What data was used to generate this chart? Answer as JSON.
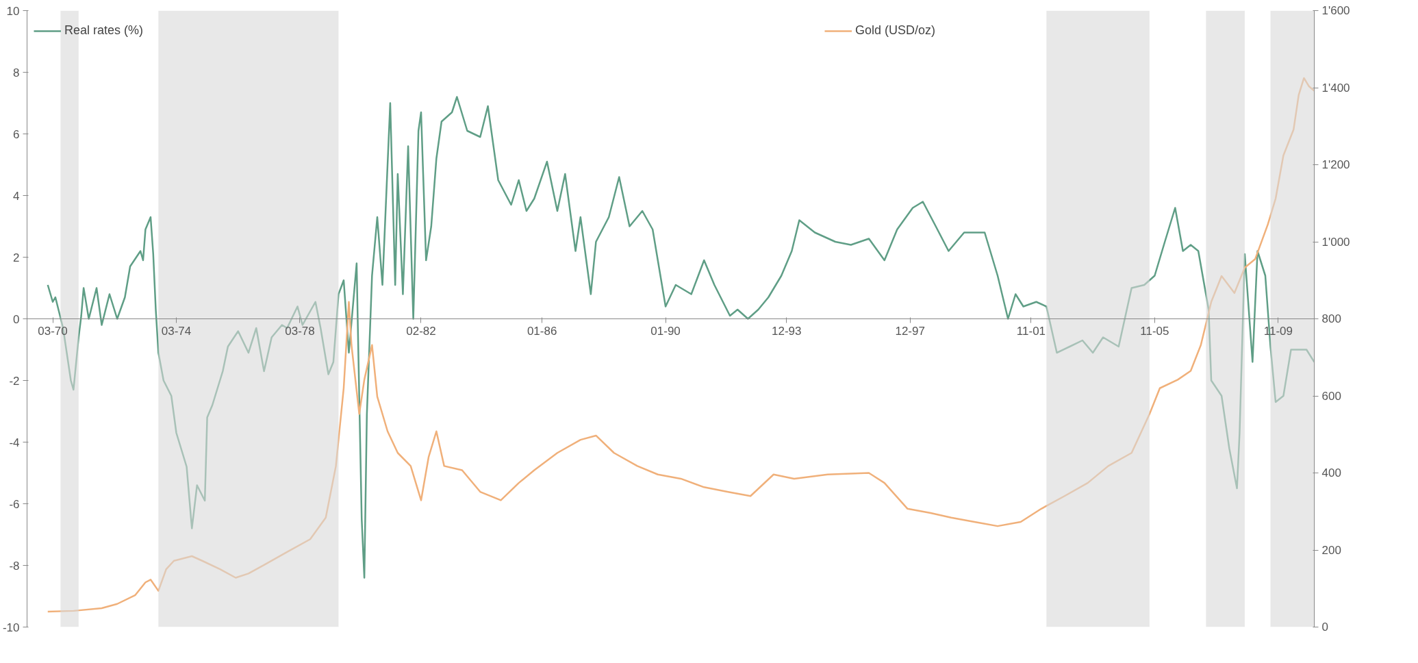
{
  "chart_data": {
    "type": "line",
    "xlim": [
      "1969-05",
      "2011-01"
    ],
    "xticks": [
      {
        "value": "1970-03",
        "label": "03-70"
      },
      {
        "value": "1974-03",
        "label": "03-74"
      },
      {
        "value": "1978-03",
        "label": "03-78"
      },
      {
        "value": "1982-02",
        "label": "02-82"
      },
      {
        "value": "1986-01",
        "label": "01-86"
      },
      {
        "value": "1990-01",
        "label": "01-90"
      },
      {
        "value": "1993-12",
        "label": "12-93"
      },
      {
        "value": "1997-12",
        "label": "12-97"
      },
      {
        "value": "2001-11",
        "label": "11-01"
      },
      {
        "value": "2005-11",
        "label": "11-05"
      },
      {
        "value": "2009-11",
        "label": "11-09"
      }
    ],
    "ylim": [
      -10,
      10
    ],
    "yticks": [
      -10,
      -8,
      -6,
      -4,
      -2,
      0,
      2,
      4,
      6,
      8,
      10
    ],
    "y2lim": [
      0,
      1600
    ],
    "y2ticks": [
      0,
      200,
      400,
      600,
      800,
      {
        "value": 1000,
        "label": "1'000"
      },
      {
        "value": 1200,
        "label": "1'200"
      },
      {
        "value": 1400,
        "label": "1'400"
      },
      {
        "value": 1600,
        "label": "1'600"
      }
    ],
    "grid": false,
    "legend": "top",
    "bands": [
      {
        "axis": "x",
        "from": "1970-06",
        "to": "1971-01",
        "color": "#d9d9d9"
      },
      {
        "axis": "x",
        "from": "1973-08",
        "to": "1979-06",
        "color": "#d9d9d9"
      },
      {
        "axis": "x",
        "from": "2002-05",
        "to": "2005-09",
        "color": "#d9d9d9"
      },
      {
        "axis": "x",
        "from": "2007-07",
        "to": "2008-10",
        "color": "#d9d9d9"
      },
      {
        "axis": "x",
        "from": "2009-08",
        "to": "2011-01",
        "color": "#d9d9d9"
      }
    ],
    "series": [
      {
        "name": "Real rates (%)",
        "color": "#5f9e86",
        "x": [
          "1970-01",
          "1970-03",
          "1970-04",
          "1970-07",
          "1970-10",
          "1970-11",
          "1971-01",
          "1971-02",
          "1971-03",
          "1971-05",
          "1971-08",
          "1971-10",
          "1972-01",
          "1972-04",
          "1972-07",
          "1972-09",
          "1973-01",
          "1973-02",
          "1973-03",
          "1973-05",
          "1973-06",
          "1973-07",
          "1973-08",
          "1973-10",
          "1974-01",
          "1974-03",
          "1974-07",
          "1974-09",
          "1974-11",
          "1975-02",
          "1975-03",
          "1975-05",
          "1975-09",
          "1975-11",
          "1976-03",
          "1976-07",
          "1976-10",
          "1977-01",
          "1977-04",
          "1977-08",
          "1977-10",
          "1978-02",
          "1978-04",
          "1978-09",
          "1978-11",
          "1979-02",
          "1979-04",
          "1979-06",
          "1979-08",
          "1979-10",
          "1980-01-01",
          "1980-01-20",
          "1980-03",
          "1980-04",
          "1980-05",
          "1980-07",
          "1980-09",
          "1980-11",
          "1981-02",
          "1981-04",
          "1981-05",
          "1981-07",
          "1981-09",
          "1981-11",
          "1982-01",
          "1982-02",
          "1982-04",
          "1982-06",
          "1982-08",
          "1982-10",
          "1983-02",
          "1983-04",
          "1983-08",
          "1984-01",
          "1984-04",
          "1984-08",
          "1985-01",
          "1985-04",
          "1985-07",
          "1985-10",
          "1986-03",
          "1986-07",
          "1986-10",
          "1987-02",
          "1987-04",
          "1987-08",
          "1987-10",
          "1988-03",
          "1988-07",
          "1988-11",
          "1989-04",
          "1989-08",
          "1990-01",
          "1990-05",
          "1990-11",
          "1991-04",
          "1991-08",
          "1992-02",
          "1992-05",
          "1992-09",
          "1993-01",
          "1993-05",
          "1993-10",
          "1994-02",
          "1994-05",
          "1994-11",
          "1995-07",
          "1996-01",
          "1996-08",
          "1997-02",
          "1997-07",
          "1998-01",
          "1998-05",
          "1998-10",
          "1999-03",
          "1999-09",
          "2000-05",
          "2000-10",
          "2001-02",
          "2001-05",
          "2001-08",
          "2002-01",
          "2002-05",
          "2002-09",
          "2003-02",
          "2003-07",
          "2003-11",
          "2004-03",
          "2004-09",
          "2005-02",
          "2005-07",
          "2005-11",
          "2006-03",
          "2006-07",
          "2006-10",
          "2007-01",
          "2007-04",
          "2007-08",
          "2007-09",
          "2008-01",
          "2008-04",
          "2008-07",
          "2008-08",
          "2008-10",
          "2009-01",
          "2009-03",
          "2009-06",
          "2009-08",
          "2009-10",
          "2010-01",
          "2010-04",
          "2010-10",
          "2011-01"
        ],
        "values": [
          1.1,
          0.55,
          0.7,
          -0.3,
          -2.0,
          -2.3,
          -0.6,
          0.1,
          1.0,
          0,
          1.0,
          -0.2,
          0.8,
          0,
          0.7,
          1.7,
          2.2,
          1.9,
          2.9,
          3.3,
          2.1,
          0.3,
          -1.1,
          -2.0,
          -2.5,
          -3.7,
          -4.8,
          -6.8,
          -5.4,
          -5.9,
          -3.2,
          -2.8,
          -1.7,
          -0.9,
          -0.4,
          -1.1,
          -0.3,
          -1.7,
          -0.6,
          -0.2,
          -0.3,
          0.4,
          -0.2,
          0.55,
          -0.3,
          -1.8,
          -1.4,
          0.8,
          1.25,
          -1.1,
          1.8,
          -0.9,
          -6.5,
          -8.4,
          -3.1,
          1.4,
          3.3,
          1.1,
          7.0,
          1.1,
          4.7,
          0.8,
          5.6,
          0,
          6.1,
          6.7,
          1.9,
          3.0,
          5.2,
          6.4,
          6.7,
          7.2,
          6.1,
          5.9,
          6.9,
          4.5,
          3.7,
          4.5,
          3.5,
          3.9,
          5.1,
          3.5,
          4.7,
          2.2,
          3.3,
          0.8,
          2.5,
          3.3,
          4.6,
          3.0,
          3.5,
          2.9,
          0.4,
          1.1,
          0.8,
          1.9,
          1.1,
          0.1,
          0.3,
          0,
          0.3,
          0.7,
          1.4,
          2.2,
          3.2,
          2.8,
          2.5,
          2.4,
          2.6,
          1.9,
          2.9,
          3.6,
          3.8,
          3.0,
          2.2,
          2.8,
          2.8,
          1.4,
          0,
          0.8,
          0.4,
          0.55,
          0.4,
          -1.1,
          -0.9,
          -0.7,
          -1.1,
          -0.6,
          -0.9,
          1.0,
          1.1,
          1.4,
          2.5,
          3.6,
          2.2,
          2.4,
          2.2,
          0.3,
          -2.0,
          -2.5,
          -4.2,
          -5.5,
          -3.7,
          2.1,
          -1.4,
          2.2,
          1.4,
          -0.9,
          -2.7,
          -2.5,
          -1.0,
          -1.0,
          -1.4
        ]
      },
      {
        "name": "Gold (USD/oz)",
        "color": "#f0b07a",
        "axis": "y2",
        "x": [
          "1970-01",
          "1970-11",
          "1971-10",
          "1972-04",
          "1972-11",
          "1973-03",
          "1973-05",
          "1973-08",
          "1973-11",
          "1974-02",
          "1974-09",
          "1975-01",
          "1975-08",
          "1976-02",
          "1976-07",
          "1977-01",
          "1977-10",
          "1978-07",
          "1979-01",
          "1979-05",
          "1979-08",
          "1979-10",
          "1979-11",
          "1980-02",
          "1980-04",
          "1980-07",
          "1980-09",
          "1981-01",
          "1981-05",
          "1981-10",
          "1982-02",
          "1982-05",
          "1982-08",
          "1982-11",
          "1983-06",
          "1984-01",
          "1984-09",
          "1985-04",
          "1985-10",
          "1986-07",
          "1987-04",
          "1987-10",
          "1988-05",
          "1989-02",
          "1989-10",
          "1990-07",
          "1991-04",
          "1992-01",
          "1992-10",
          "1993-07",
          "1994-03",
          "1995-04",
          "1996-08",
          "1997-02",
          "1997-11",
          "1998-08",
          "1999-04",
          "2000-01",
          "2000-10",
          "2001-07",
          "2002-03",
          "2002-12",
          "2003-09",
          "2004-05",
          "2005-02",
          "2005-09",
          "2006-01",
          "2006-08",
          "2007-01",
          "2007-05",
          "2007-09",
          "2008-01",
          "2008-06",
          "2008-10",
          "2009-02",
          "2009-07",
          "2009-10",
          "2010-01",
          "2010-05",
          "2010-07",
          "2010-09",
          "2010-11",
          "2011-01"
        ],
        "values": [
          40,
          42,
          49,
          60,
          83,
          116,
          123,
          94,
          150,
          172,
          184,
          172,
          150,
          128,
          139,
          161,
          195,
          228,
          284,
          418,
          620,
          844,
          732,
          553,
          642,
          732,
          598,
          508,
          452,
          418,
          329,
          441,
          508,
          418,
          407,
          351,
          329,
          374,
          407,
          452,
          486,
          497,
          452,
          418,
          396,
          385,
          363,
          351,
          340,
          396,
          385,
          396,
          400,
          374,
          307,
          296,
          284,
          273,
          262,
          273,
          307,
          340,
          374,
          418,
          452,
          553,
          620,
          642,
          665,
          732,
          844,
          911,
          867,
          933,
          955,
          1045,
          1112,
          1224,
          1291,
          1381,
          1425,
          1403,
          1392
        ]
      }
    ]
  }
}
